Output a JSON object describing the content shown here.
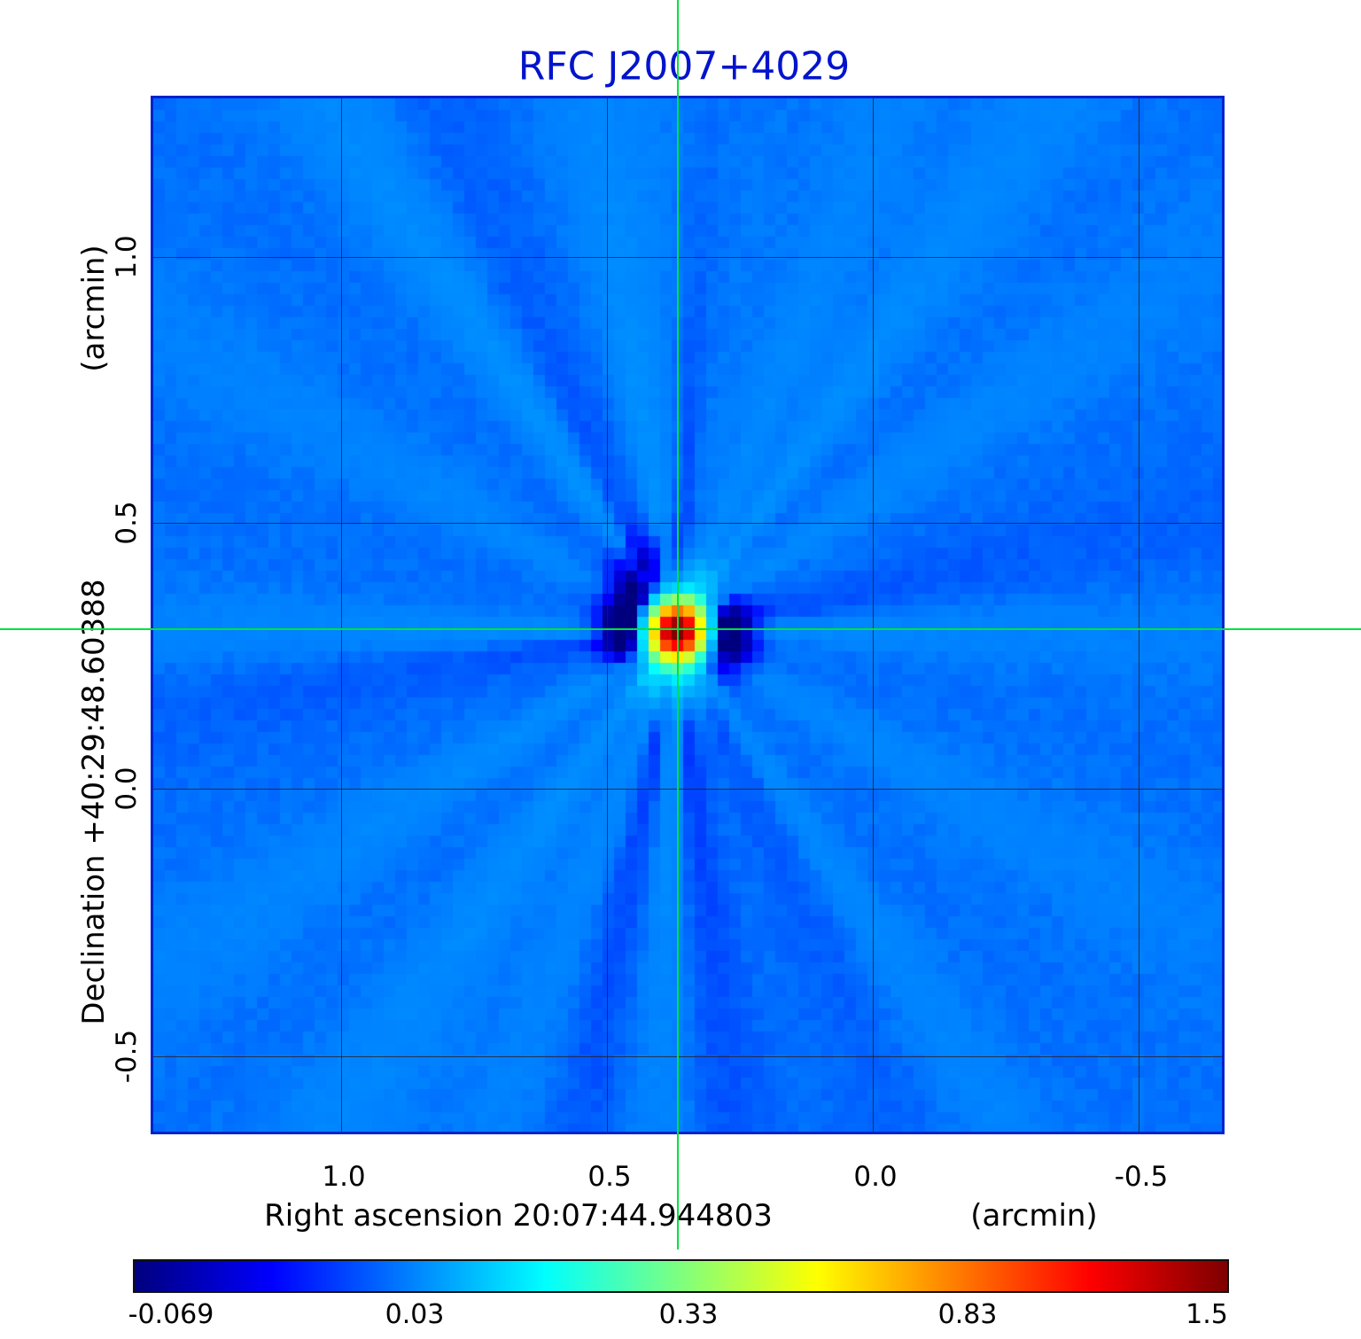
{
  "title": "RFC J2007+4029",
  "colors": {
    "title": "#0014cc",
    "frame": "#0022cc",
    "crosshair": "#00e23c",
    "grid": "rgba(45,25,25,0.75)",
    "background_blue": "#1e90ff"
  },
  "y_axis": {
    "unit_label": "(arcmin)",
    "axis_label": "Declination  +40:29:48.60388",
    "ticks": [
      "1.0",
      "0.5",
      "0.0",
      "-0.5"
    ]
  },
  "x_axis": {
    "axis_label": "Right ascension  20:07:44.944803",
    "unit_label": "(arcmin)",
    "ticks": [
      "1.0",
      "0.5",
      "0.0",
      "-0.5"
    ]
  },
  "colorbar": {
    "tick_labels": [
      "-0.069",
      "0.03",
      "0.33",
      "0.83",
      "1.5"
    ]
  },
  "chart_data": {
    "type": "heatmap",
    "title": "RFC J2007+4029",
    "xlabel": "Right ascension 20:07:44.944803 (arcmin)",
    "ylabel": "Declination +40:29:48.60388 (arcmin)",
    "source": {
      "name": "RFC J2007+4029",
      "ra": "20:07:44.944803",
      "dec": "+40:29:48.60388"
    },
    "x_range_arcmin": [
      1.36,
      -0.66
    ],
    "y_range_arcmin": [
      1.3,
      -0.64
    ],
    "x_ticks": [
      1.0,
      0.5,
      0.0,
      -0.5
    ],
    "y_ticks": [
      1.0,
      0.5,
      0.0,
      -0.5
    ],
    "grid": true,
    "colormap": "jet",
    "color_scale_values": [
      -0.069,
      0.03,
      0.33,
      0.83,
      1.5
    ],
    "background_value": 0.024,
    "peak": {
      "x_arcmin": 0.37,
      "y_arcmin": 0.3,
      "value": 1.5
    },
    "crosshair_arcmin": {
      "x": 0.37,
      "y": 0.3
    },
    "description": "VLBI jet-colormap intensity map: flat blue background with radial sidelobe streaks and a compact bright source (red core, yellow-green halo, dark-blue negative sidelobes) at the crosshair position."
  }
}
